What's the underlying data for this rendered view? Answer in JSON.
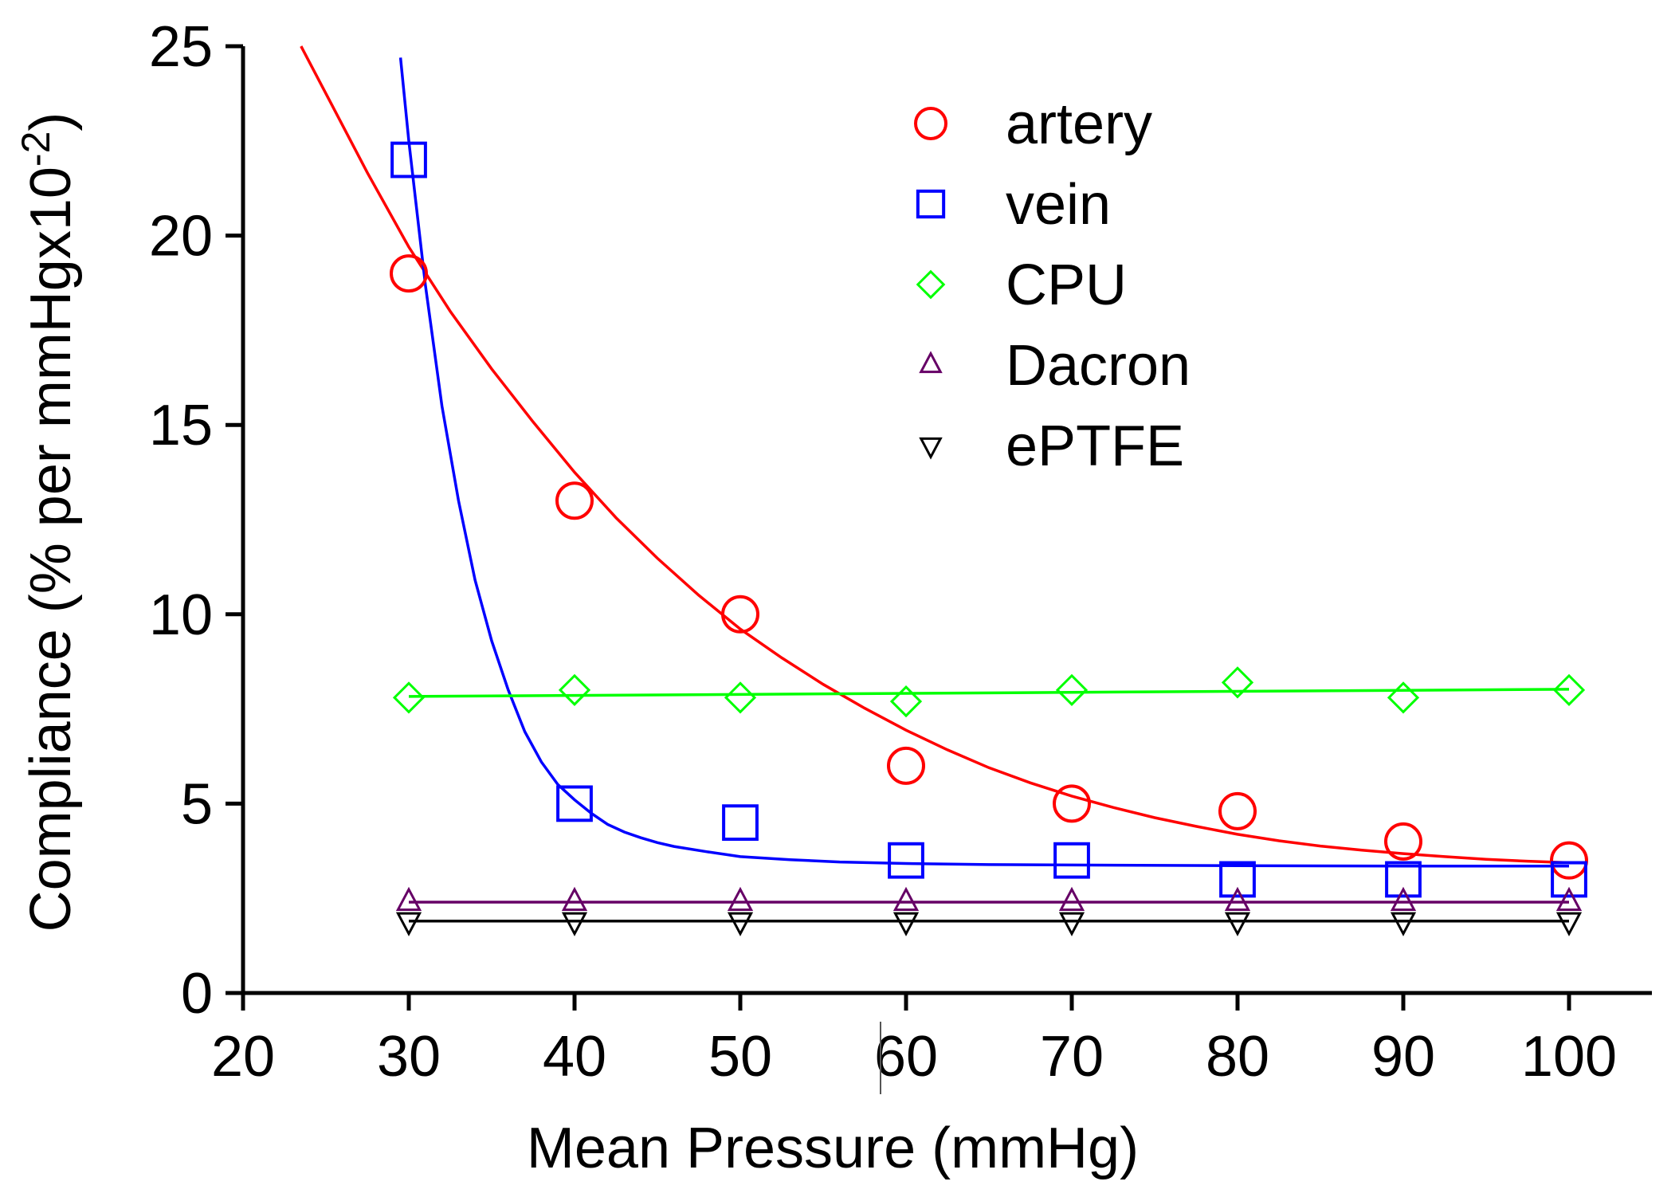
{
  "chart_data": {
    "type": "scatter",
    "title": "",
    "xlabel": "Mean Pressure (mmHg)",
    "ylabel": "Compliance (% per mmHgx10",
    "ylabel_superscript": "-2",
    "ylabel_suffix": ")",
    "xlim": [
      20,
      105
    ],
    "ylim": [
      0,
      25
    ],
    "xticks": [
      20,
      30,
      40,
      50,
      60,
      70,
      80,
      90,
      100
    ],
    "yticks": [
      0,
      5,
      10,
      15,
      20,
      25
    ],
    "legend_position": "top-right",
    "grid": false,
    "series": [
      {
        "name": "artery",
        "marker": "circle",
        "color": "#ff0000",
        "x": [
          30,
          40,
          50,
          60,
          70,
          80,
          90,
          100
        ],
        "y": [
          19,
          13,
          10,
          6,
          5,
          4.8,
          4,
          3.5
        ],
        "fit": {
          "x": [
            23.5,
            25,
            27.5,
            30,
            32.5,
            35,
            37.5,
            40,
            42.5,
            45,
            47.5,
            50,
            52.5,
            55,
            57.5,
            60,
            62.5,
            65,
            67.5,
            70,
            72.5,
            75,
            77.5,
            80,
            82.5,
            85,
            87.5,
            90,
            92.5,
            95,
            97.5,
            100
          ],
          "y": [
            25,
            23.75,
            21.66,
            19.7,
            18,
            16.48,
            15.08,
            13.75,
            12.55,
            11.48,
            10.5,
            9.61,
            8.85,
            8.15,
            7.52,
            6.94,
            6.42,
            5.95,
            5.55,
            5.2,
            4.9,
            4.63,
            4.4,
            4.19,
            4.02,
            3.88,
            3.77,
            3.68,
            3.6,
            3.53,
            3.48,
            3.44
          ]
        }
      },
      {
        "name": "vein",
        "marker": "square",
        "color": "#0000ff",
        "x": [
          30,
          40,
          50,
          60,
          70,
          80,
          90,
          100
        ],
        "y": [
          22,
          5,
          4.5,
          3.5,
          3.5,
          3,
          3,
          3
        ],
        "fit": {
          "x": [
            29.5,
            30,
            31,
            32,
            33,
            34,
            35,
            36,
            37,
            38,
            39,
            40,
            41,
            42,
            43,
            44,
            45,
            46,
            48,
            50,
            53,
            56,
            60,
            65,
            70,
            80,
            90,
            100
          ],
          "y": [
            24.7,
            22.5,
            18.7,
            15.5,
            13,
            10.9,
            9.3,
            8,
            6.9,
            6.1,
            5.5,
            5.1,
            4.75,
            4.45,
            4.25,
            4.1,
            3.97,
            3.87,
            3.73,
            3.6,
            3.52,
            3.46,
            3.42,
            3.39,
            3.38,
            3.36,
            3.35,
            3.35
          ]
        }
      },
      {
        "name": "CPU",
        "marker": "diamond",
        "color": "#00ff00",
        "x": [
          30,
          40,
          50,
          60,
          70,
          80,
          90,
          100
        ],
        "y": [
          7.8,
          8,
          7.8,
          7.7,
          8,
          8.2,
          7.8,
          8
        ],
        "fit": {
          "x": [
            30,
            100
          ],
          "y": [
            7.83,
            8.02
          ]
        }
      },
      {
        "name": "Dacron",
        "marker": "triangle-up",
        "color": "#660066",
        "x": [
          30,
          40,
          50,
          60,
          70,
          80,
          90,
          100
        ],
        "y": [
          2.4,
          2.4,
          2.4,
          2.4,
          2.4,
          2.4,
          2.4,
          2.4
        ],
        "fit": {
          "x": [
            30,
            100
          ],
          "y": [
            2.4,
            2.4
          ]
        }
      },
      {
        "name": "ePTFE",
        "marker": "triangle-down",
        "color": "#000000",
        "x": [
          30,
          40,
          50,
          60,
          70,
          80,
          90,
          100
        ],
        "y": [
          1.9,
          1.9,
          1.9,
          1.9,
          1.9,
          1.9,
          1.9,
          1.9
        ],
        "fit": {
          "x": [
            30,
            100
          ],
          "y": [
            1.9,
            1.9
          ]
        }
      }
    ]
  }
}
